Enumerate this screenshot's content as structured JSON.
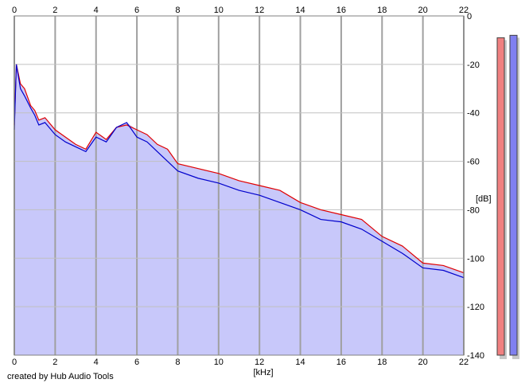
{
  "chart_data": {
    "type": "area",
    "xlabel": "[kHz]",
    "ylabel": "[dB]",
    "xlim": [
      0,
      22
    ],
    "ylim": [
      -140,
      0
    ],
    "x_ticks": [
      0,
      2,
      4,
      6,
      8,
      10,
      12,
      14,
      16,
      18,
      20,
      22
    ],
    "y_ticks": [
      0,
      -20,
      -40,
      -60,
      -80,
      -100,
      -120,
      -140
    ],
    "grid": true,
    "series": [
      {
        "color": "#e00000",
        "x": [
          0,
          0.1,
          0.3,
          0.5,
          0.8,
          1,
          1.2,
          1.5,
          2,
          2.5,
          3,
          3.5,
          4,
          4.5,
          5,
          5.5,
          6,
          6.5,
          7,
          7.5,
          8,
          9,
          10,
          11,
          12,
          13,
          14,
          15,
          16,
          17,
          18,
          19,
          20,
          21,
          22
        ],
        "y": [
          -45,
          -20,
          -28,
          -30,
          -37,
          -39,
          -43,
          -42,
          -47,
          -50,
          -53,
          -55,
          -48,
          -51,
          -46,
          -45,
          -47,
          -49,
          -53,
          -55,
          -61,
          -63,
          -65,
          -68,
          -70,
          -72,
          -77,
          -80,
          -82,
          -84,
          -91,
          -95,
          -102,
          -103,
          -106
        ]
      },
      {
        "color": "#0000cc",
        "x": [
          0,
          0.1,
          0.3,
          0.5,
          0.8,
          1,
          1.2,
          1.5,
          2,
          2.5,
          3,
          3.5,
          4,
          4.5,
          5,
          5.5,
          6,
          6.5,
          7,
          7.5,
          8,
          9,
          10,
          11,
          12,
          13,
          14,
          15,
          16,
          17,
          18,
          19,
          20,
          21,
          22
        ],
        "y": [
          -47,
          -20,
          -30,
          -33,
          -38,
          -41,
          -45,
          -44,
          -49,
          -52,
          -54,
          -56,
          -50,
          -52,
          -46,
          -44,
          -50,
          -52,
          -56,
          -60,
          -64,
          -67,
          -69,
          -72,
          -74,
          -77,
          -80,
          -84,
          -85,
          -88,
          -93,
          -98,
          -104,
          -105,
          -108
        ]
      }
    ],
    "level_meters": [
      {
        "color": "#f08080",
        "value": -9
      },
      {
        "color": "#8080f0",
        "value": -8
      }
    ],
    "fill_color": "#c8c8fa"
  },
  "footer": {
    "credit": "created by Hub Audio Tools"
  }
}
